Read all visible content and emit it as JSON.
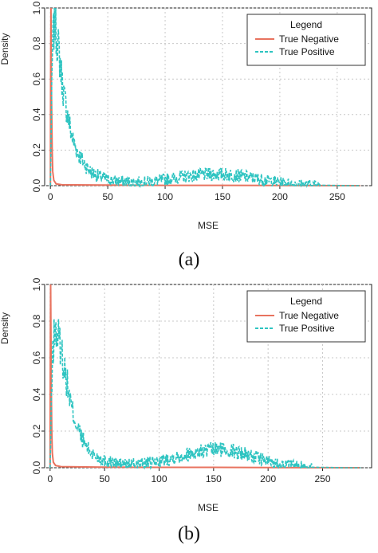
{
  "panels": [
    {
      "caption": "(a)",
      "chart_data": {
        "type": "line",
        "xlabel": "MSE",
        "ylabel": "Density",
        "xlim": [
          -5,
          280
        ],
        "ylim": [
          0,
          1.0
        ],
        "x_ticks": [
          0,
          50,
          100,
          150,
          200,
          250
        ],
        "y_ticks": [
          0.0,
          0.2,
          0.4,
          0.6,
          0.8,
          1.0
        ],
        "grid": true,
        "legend": {
          "title": "Legend",
          "placement": "top-right"
        },
        "series": [
          {
            "name": "True Negative",
            "color": "#e8735f",
            "style": "solid",
            "x": [
              0,
              0.2,
              0.5,
              1,
              1.5,
              2,
              3,
              5,
              10,
              50,
              100,
              150,
              200,
              270
            ],
            "y": [
              0.0,
              0.6,
              1.0,
              0.5,
              0.2,
              0.08,
              0.03,
              0.01,
              0.005,
              0.003,
              0.002,
              0.002,
              0.001,
              0.0
            ]
          },
          {
            "name": "True Positive",
            "color": "#2ec4c1",
            "style": "dashed",
            "x": [
              0,
              1,
              2,
              3,
              4,
              5,
              6,
              7,
              8,
              10,
              12,
              15,
              18,
              20,
              25,
              30,
              35,
              40,
              50,
              60,
              70,
              80,
              90,
              100,
              110,
              120,
              130,
              140,
              150,
              160,
              170,
              180,
              190,
              200,
              210,
              220,
              230,
              240,
              250,
              260,
              270
            ],
            "y": [
              0.0,
              0.45,
              0.8,
              0.88,
              0.92,
              0.86,
              0.82,
              0.77,
              0.72,
              0.6,
              0.5,
              0.4,
              0.3,
              0.25,
              0.17,
              0.12,
              0.08,
              0.06,
              0.035,
              0.025,
              0.02,
              0.02,
              0.025,
              0.035,
              0.045,
              0.055,
              0.06,
              0.065,
              0.065,
              0.06,
              0.05,
              0.04,
              0.028,
              0.018,
              0.01,
              0.006,
              0.004,
              0.002,
              0.001,
              0.0,
              0.0
            ]
          }
        ]
      }
    },
    {
      "caption": "(b)",
      "chart_data": {
        "type": "line",
        "xlabel": "MSE",
        "ylabel": "Density",
        "xlim": [
          -5,
          295
        ],
        "ylim": [
          0,
          1.0
        ],
        "x_ticks": [
          0,
          50,
          100,
          150,
          200,
          250
        ],
        "y_ticks": [
          0.0,
          0.2,
          0.4,
          0.6,
          0.8,
          1.0
        ],
        "grid": true,
        "legend": {
          "title": "Legend",
          "placement": "top-right"
        },
        "series": [
          {
            "name": "True Negative",
            "color": "#e8735f",
            "style": "solid",
            "x": [
              0,
              0.2,
              0.5,
              1,
              1.5,
              2,
              3,
              5,
              10,
              50,
              100,
              150,
              200,
              285
            ],
            "y": [
              0.0,
              0.6,
              1.0,
              0.5,
              0.2,
              0.08,
              0.03,
              0.012,
              0.006,
              0.003,
              0.002,
              0.002,
              0.001,
              0.0
            ]
          },
          {
            "name": "True Positive",
            "color": "#2ec4c1",
            "style": "dashed",
            "x": [
              0,
              1,
              2,
              3,
              4,
              5,
              6,
              7,
              8,
              10,
              12,
              15,
              18,
              20,
              25,
              30,
              35,
              40,
              50,
              60,
              70,
              80,
              90,
              100,
              110,
              120,
              130,
              140,
              150,
              160,
              170,
              180,
              190,
              200,
              210,
              220,
              230,
              240,
              250,
              260,
              270,
              285
            ],
            "y": [
              0.0,
              0.3,
              0.55,
              0.68,
              0.72,
              0.74,
              0.73,
              0.72,
              0.7,
              0.65,
              0.58,
              0.48,
              0.38,
              0.32,
              0.22,
              0.15,
              0.1,
              0.07,
              0.04,
              0.025,
              0.02,
              0.02,
              0.025,
              0.035,
              0.05,
              0.065,
              0.08,
              0.09,
              0.1,
              0.1,
              0.09,
              0.075,
              0.055,
              0.035,
              0.02,
              0.012,
              0.006,
              0.003,
              0.002,
              0.001,
              0.0,
              0.0
            ]
          }
        ]
      }
    }
  ]
}
